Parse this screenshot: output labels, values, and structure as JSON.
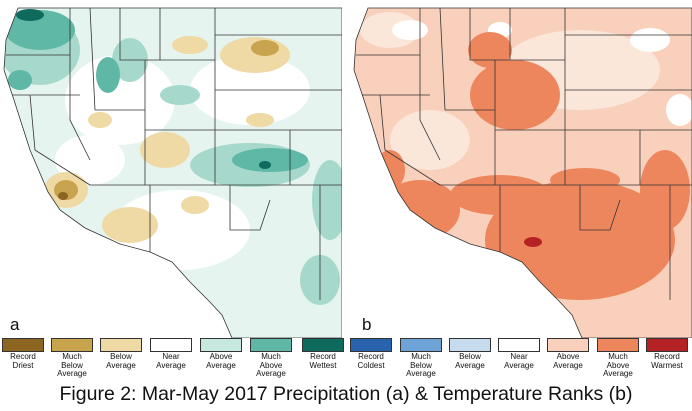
{
  "panels": [
    {
      "letter": "a",
      "variable": "Precipitation"
    },
    {
      "letter": "b",
      "variable": "Temperature"
    }
  ],
  "precip_legend": [
    {
      "label": "Record Driest",
      "color": "#8c6520"
    },
    {
      "label": "Much Below Average",
      "color": "#c9a44f"
    },
    {
      "label": "Below Average",
      "color": "#efd9a4"
    },
    {
      "label": "Near Average",
      "color": "#ffffff"
    },
    {
      "label": "Above Average",
      "color": "#c6e8de"
    },
    {
      "label": "Much Above Average",
      "color": "#5fb7a5"
    },
    {
      "label": "Record Wettest",
      "color": "#0e6a5c"
    }
  ],
  "temp_legend": [
    {
      "label": "Record Coldest",
      "color": "#2a63ad"
    },
    {
      "label": "Much Below Average",
      "color": "#6ea3d8"
    },
    {
      "label": "Below Average",
      "color": "#c6dcee"
    },
    {
      "label": "Near Average",
      "color": "#ffffff"
    },
    {
      "label": "Above Average",
      "color": "#f8d0bb"
    },
    {
      "label": "Much Above Average",
      "color": "#ee865d"
    },
    {
      "label": "Record Warmest",
      "color": "#b52226"
    }
  ],
  "caption": "Figure 2: Mar-May 2017 Precipitation (a) & Temperature Ranks (b)"
}
